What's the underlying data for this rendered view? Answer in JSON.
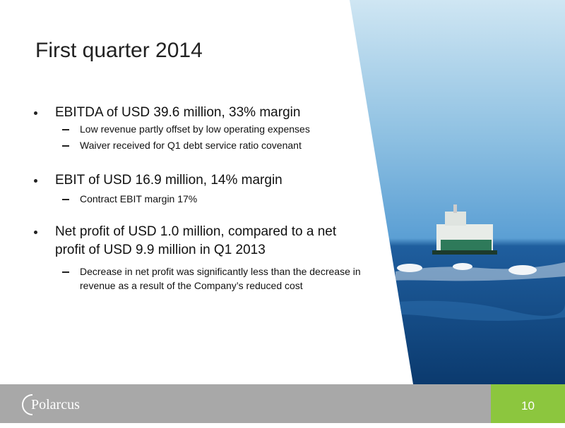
{
  "slide": {
    "title": "First quarter 2014",
    "bullets": [
      {
        "text": "EBITDA of USD 39.6 million, 33% margin",
        "sub": [
          "Low revenue partly offset by low operating expenses",
          "Waiver received for Q1 debt service ratio covenant"
        ]
      },
      {
        "text": "EBIT of USD 16.9 million, 14% margin",
        "sub": [
          "Contract EBIT margin 17%"
        ]
      },
      {
        "text": "Net profit of USD 1.0 million, compared to a net profit of USD 9.9 million in Q1 2013",
        "sub": [
          "Decrease in net profit was significantly less than the decrease in revenue as a result of the Company’s reduced cost"
        ]
      }
    ],
    "footer": {
      "logo": "Polarcus",
      "page_number": "10"
    }
  }
}
